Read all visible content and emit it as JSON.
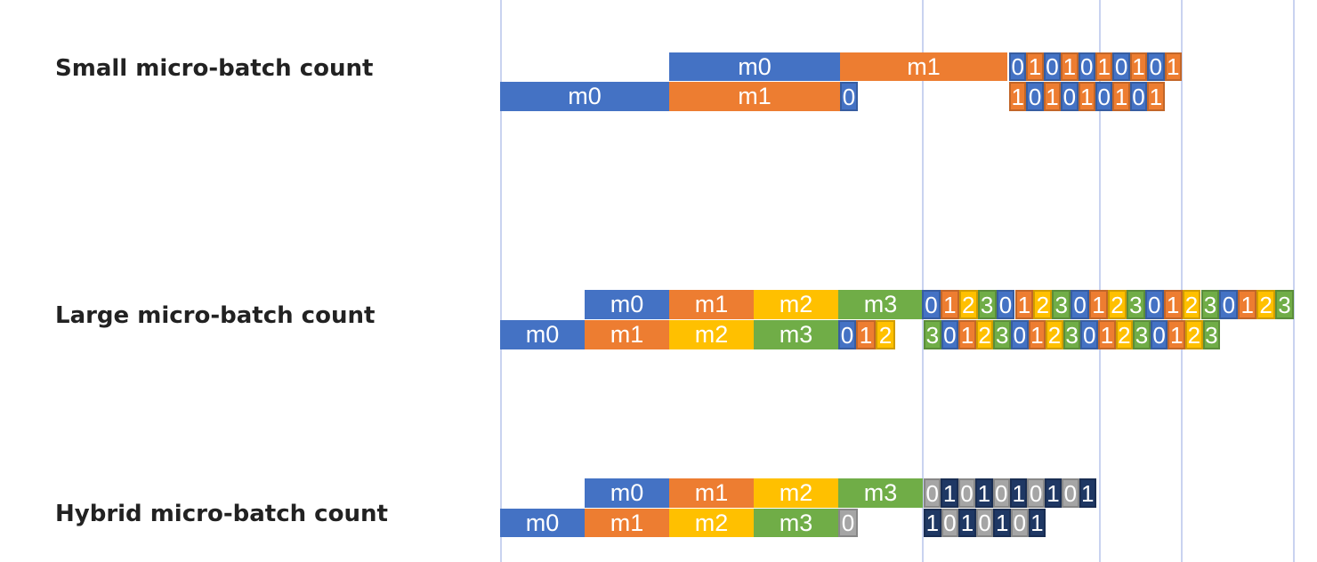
{
  "colors": {
    "m0": "#4472c4",
    "m1": "#ed7d31",
    "m2": "#ffc000",
    "m3": "#70ad47",
    "backward_dark": "#1f3864",
    "backward_gray": "#a5a5a5",
    "gridline": "#c9d3f0"
  },
  "rows": [
    {
      "label": "Small micro-batch count",
      "lanes": [
        {
          "blocks": [
            {
              "text": "m0",
              "color": "m0"
            },
            {
              "text": "m1",
              "color": "m1"
            },
            {
              "text": "0",
              "color": "m0"
            },
            {
              "text": "1",
              "color": "m1"
            },
            {
              "text": "0",
              "color": "m0"
            },
            {
              "text": "1",
              "color": "m1"
            },
            {
              "text": "0",
              "color": "m0"
            },
            {
              "text": "1",
              "color": "m1"
            },
            {
              "text": "0",
              "color": "m0"
            },
            {
              "text": "1",
              "color": "m1"
            },
            {
              "text": "0",
              "color": "m0"
            },
            {
              "text": "1",
              "color": "m1"
            }
          ]
        },
        {
          "blocks": [
            {
              "text": "m0",
              "color": "m0"
            },
            {
              "text": "m1",
              "color": "m1"
            },
            {
              "text": "0",
              "color": "m0"
            },
            {
              "text": "1",
              "color": "m1"
            },
            {
              "text": "0",
              "color": "m0"
            },
            {
              "text": "1",
              "color": "m1"
            },
            {
              "text": "0",
              "color": "m0"
            },
            {
              "text": "1",
              "color": "m1"
            },
            {
              "text": "0",
              "color": "m0"
            },
            {
              "text": "1",
              "color": "m1"
            },
            {
              "text": "0",
              "color": "m0"
            },
            {
              "text": "1",
              "color": "m1"
            }
          ]
        }
      ]
    },
    {
      "label": "Large micro-batch count",
      "lanes": [
        {
          "blocks": [
            {
              "text": "m0",
              "color": "m0"
            },
            {
              "text": "m1",
              "color": "m1"
            },
            {
              "text": "m2",
              "color": "m2"
            },
            {
              "text": "m3",
              "color": "m3"
            },
            {
              "text": "0",
              "color": "m0"
            },
            {
              "text": "1",
              "color": "m1"
            },
            {
              "text": "2",
              "color": "m2"
            },
            {
              "text": "3",
              "color": "m3"
            },
            {
              "text": "0",
              "color": "m0"
            },
            {
              "text": "1",
              "color": "m1"
            },
            {
              "text": "2",
              "color": "m2"
            },
            {
              "text": "3",
              "color": "m3"
            },
            {
              "text": "0",
              "color": "m0"
            },
            {
              "text": "1",
              "color": "m1"
            },
            {
              "text": "2",
              "color": "m2"
            },
            {
              "text": "3",
              "color": "m3"
            },
            {
              "text": "0",
              "color": "m0"
            },
            {
              "text": "1",
              "color": "m1"
            },
            {
              "text": "2",
              "color": "m2"
            },
            {
              "text": "3",
              "color": "m3"
            },
            {
              "text": "0",
              "color": "m0"
            },
            {
              "text": "1",
              "color": "m1"
            },
            {
              "text": "2",
              "color": "m2"
            },
            {
              "text": "3",
              "color": "m3"
            }
          ]
        },
        {
          "blocks": [
            {
              "text": "m0",
              "color": "m0"
            },
            {
              "text": "m1",
              "color": "m1"
            },
            {
              "text": "m2",
              "color": "m2"
            },
            {
              "text": "m3",
              "color": "m3"
            },
            {
              "text": "0",
              "color": "m0"
            },
            {
              "text": "1",
              "color": "m1"
            },
            {
              "text": "2",
              "color": "m2"
            },
            {
              "text": "3",
              "color": "m3"
            },
            {
              "text": "0",
              "color": "m0"
            },
            {
              "text": "1",
              "color": "m1"
            },
            {
              "text": "2",
              "color": "m2"
            },
            {
              "text": "3",
              "color": "m3"
            },
            {
              "text": "0",
              "color": "m0"
            },
            {
              "text": "1",
              "color": "m1"
            },
            {
              "text": "2",
              "color": "m2"
            },
            {
              "text": "3",
              "color": "m3"
            },
            {
              "text": "0",
              "color": "m0"
            },
            {
              "text": "1",
              "color": "m1"
            },
            {
              "text": "2",
              "color": "m2"
            },
            {
              "text": "3",
              "color": "m3"
            },
            {
              "text": "0",
              "color": "m0"
            },
            {
              "text": "1",
              "color": "m1"
            },
            {
              "text": "2",
              "color": "m2"
            },
            {
              "text": "3",
              "color": "m3"
            }
          ]
        }
      ]
    },
    {
      "label": "Hybrid micro-batch count",
      "lanes": [
        {
          "blocks": [
            {
              "text": "m0",
              "color": "m0"
            },
            {
              "text": "m1",
              "color": "m1"
            },
            {
              "text": "m2",
              "color": "m2"
            },
            {
              "text": "m3",
              "color": "m3"
            },
            {
              "text": "0",
              "color": "backward_gray"
            },
            {
              "text": "1",
              "color": "backward_dark"
            },
            {
              "text": "0",
              "color": "backward_gray"
            },
            {
              "text": "1",
              "color": "backward_dark"
            },
            {
              "text": "0",
              "color": "backward_gray"
            },
            {
              "text": "1",
              "color": "backward_dark"
            },
            {
              "text": "0",
              "color": "backward_gray"
            },
            {
              "text": "1",
              "color": "backward_dark"
            },
            {
              "text": "0",
              "color": "backward_gray"
            },
            {
              "text": "1",
              "color": "backward_dark"
            }
          ]
        },
        {
          "blocks": [
            {
              "text": "m0",
              "color": "m0"
            },
            {
              "text": "m1",
              "color": "m1"
            },
            {
              "text": "m2",
              "color": "m2"
            },
            {
              "text": "m3",
              "color": "m3"
            },
            {
              "text": "0",
              "color": "backward_gray"
            },
            {
              "text": "1",
              "color": "backward_dark"
            },
            {
              "text": "0",
              "color": "backward_gray"
            },
            {
              "text": "1",
              "color": "backward_dark"
            },
            {
              "text": "0",
              "color": "backward_gray"
            },
            {
              "text": "1",
              "color": "backward_dark"
            },
            {
              "text": "0",
              "color": "backward_gray"
            },
            {
              "text": "1",
              "color": "backward_dark"
            }
          ]
        }
      ]
    }
  ]
}
